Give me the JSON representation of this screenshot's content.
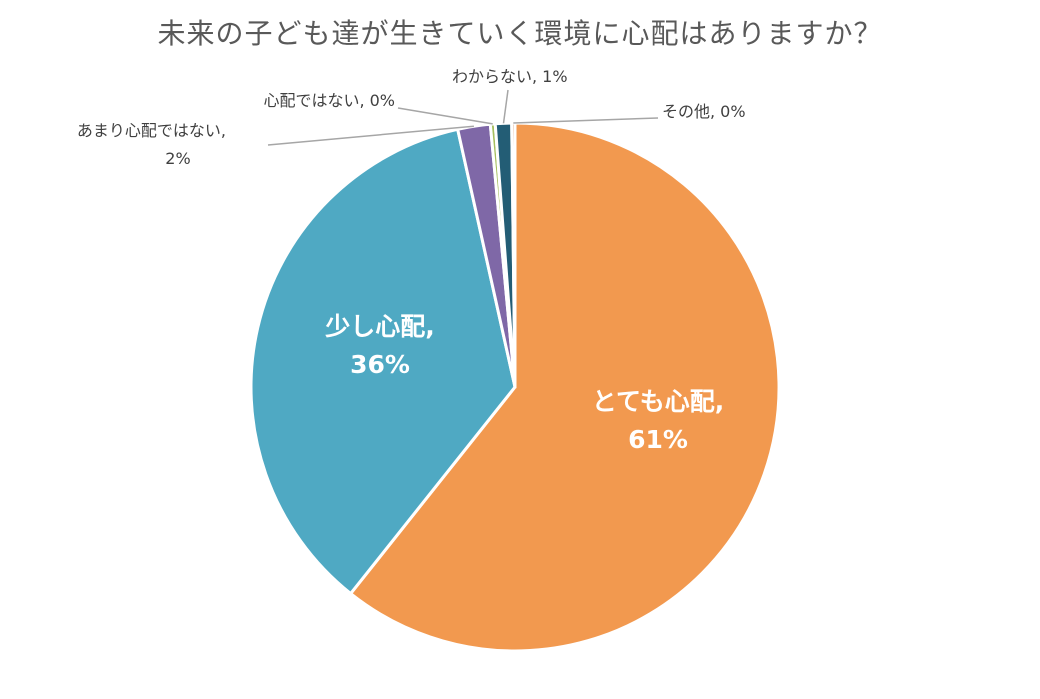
{
  "chart_data": {
    "type": "pie",
    "title": "未来の子ども達が生きていく環境に心配はありますか？",
    "start_angle_deg": 0,
    "direction": "clockwise",
    "slices": [
      {
        "label": "とても心配",
        "value": 61,
        "display": "61%",
        "color": "#F2994F",
        "label_style": "inside"
      },
      {
        "label": "少し心配",
        "value": 36,
        "display": "36%",
        "color": "#4FA9C3",
        "label_style": "inside"
      },
      {
        "label": "あまり心配ではない",
        "value": 2,
        "display": "2%",
        "color": "#7F68A7",
        "label_style": "callout"
      },
      {
        "label": "心配ではない",
        "value": 0.3,
        "display": "0%",
        "color": "#A6BF5F",
        "label_style": "callout"
      },
      {
        "label": "わからない",
        "value": 1,
        "display": "1%",
        "color": "#235D75",
        "label_style": "callout"
      },
      {
        "label": "その他",
        "value": 0.2,
        "display": "0%",
        "color": "#C9753F",
        "label_style": "callout"
      }
    ]
  }
}
